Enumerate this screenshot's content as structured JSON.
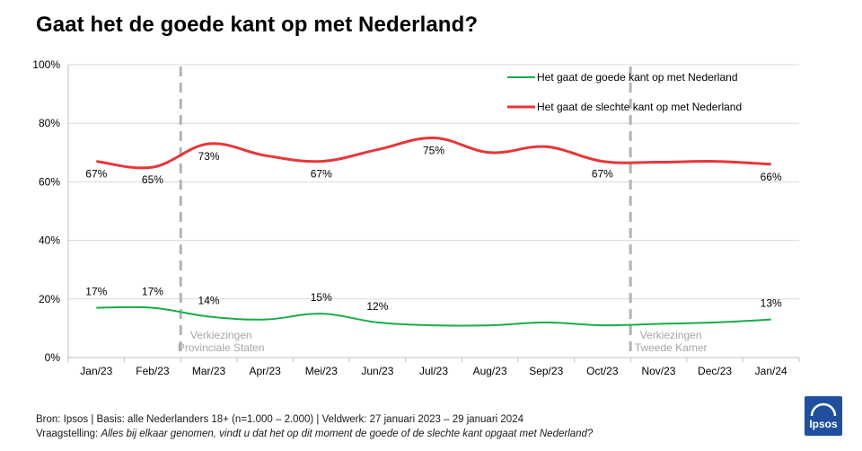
{
  "title": "Gaat het de goede kant op met Nederland?",
  "chart_data": {
    "type": "line",
    "categories": [
      "Jan/23",
      "Feb/23",
      "Mar/23",
      "Apr/23",
      "Mei/23",
      "Jun/23",
      "Jul/23",
      "Aug/23",
      "Sep/23",
      "Oct/23",
      "Nov/23",
      "Dec/23",
      "Jan/24"
    ],
    "ylim": [
      0,
      100
    ],
    "yticks": [
      "0%",
      "20%",
      "40%",
      "60%",
      "80%",
      "100%"
    ],
    "grid": true,
    "legend_position": "top-right",
    "series": [
      {
        "name": "Het gaat de goede kant op met Nederland",
        "color": "#1aab4b",
        "values": [
          17,
          17,
          14,
          13,
          15,
          12,
          11,
          11,
          12,
          11,
          11.5,
          12,
          13
        ],
        "labels": [
          "17%",
          "17%",
          "14%",
          null,
          "15%",
          "12%",
          null,
          null,
          null,
          null,
          null,
          null,
          "13%"
        ]
      },
      {
        "name": "Het gaat de slechte kant op met Nederland",
        "color": "#e8363a",
        "values": [
          67,
          65,
          73,
          69,
          67,
          71,
          75,
          70,
          72,
          67,
          66.7,
          67,
          66
        ],
        "labels": [
          "67%",
          "65%",
          "73%",
          null,
          "67%",
          null,
          "75%",
          null,
          null,
          "67%",
          null,
          null,
          "66%"
        ]
      }
    ],
    "annotations": [
      {
        "at": "Mar/23",
        "text": [
          "Verkiezingen",
          "Provinciale Staten"
        ]
      },
      {
        "at": "Nov/23",
        "text": [
          "Verkiezingen",
          "Tweede Kamer"
        ]
      }
    ]
  },
  "footer": {
    "source": "Bron: Ipsos | Basis: alle Nederlanders  18+ (n=1.000 – 2.000) | Veldwerk: 27 januari  2023 – 29 januari  2024",
    "question_label": "Vraagstelling: ",
    "question": "Alles bij elkaar genomen,  vindt u dat het op dit moment de goede  of de slechte kant opgaat met Nederland?"
  },
  "logo": {
    "text": "Ipsos",
    "color": "#1f4f9e"
  }
}
